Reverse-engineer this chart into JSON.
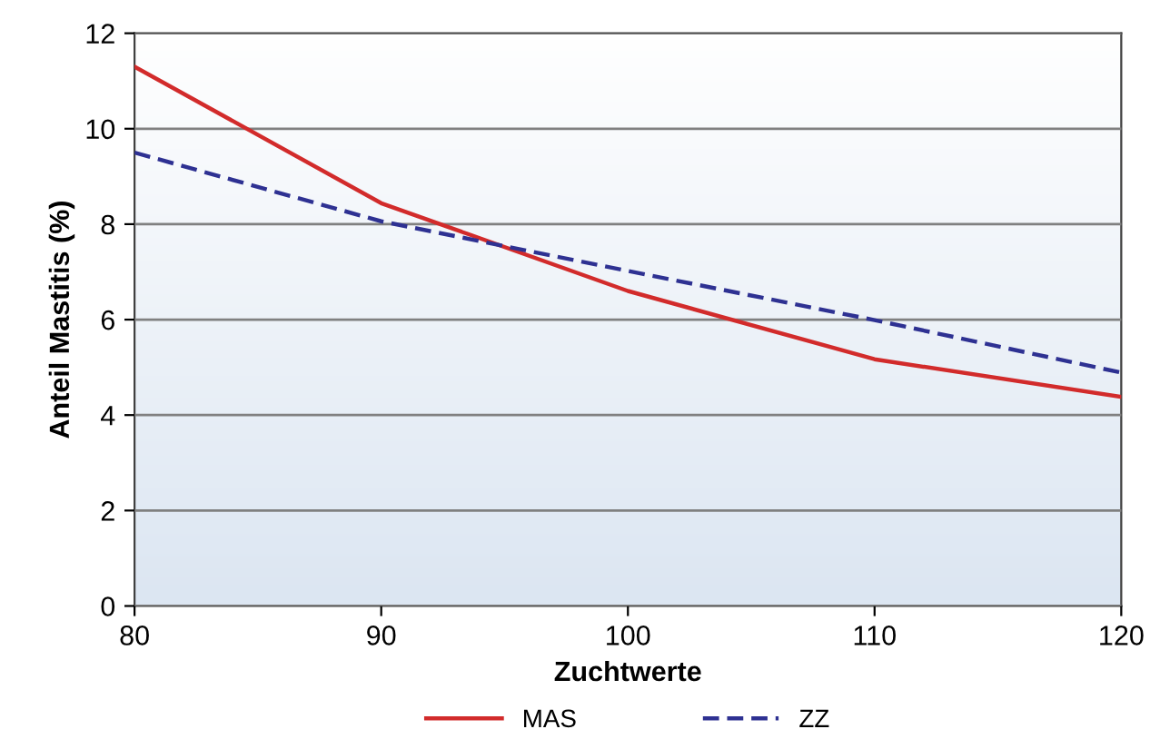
{
  "chart_data": {
    "type": "line",
    "xlabel": "Zuchtwerte",
    "ylabel": "Anteil Mastitis (%)",
    "x": [
      80,
      90,
      100,
      110,
      120
    ],
    "series": [
      {
        "name": "MAS",
        "color": "#d22b2b",
        "line_style": "solid",
        "values": [
          11.3,
          8.44,
          6.6,
          5.17,
          4.38
        ]
      },
      {
        "name": "ZZ",
        "color": "#2e3192",
        "line_style": "dashed",
        "values": [
          9.5,
          8.06,
          7.02,
          5.99,
          4.89
        ]
      }
    ],
    "xlim": [
      80,
      120
    ],
    "xticks": [
      80,
      90,
      100,
      110,
      120
    ],
    "ylim": [
      0,
      12
    ],
    "yticks": [
      0,
      2,
      4,
      6,
      8,
      10,
      12
    ],
    "grid": "y",
    "legend": "bottom",
    "marker": "none"
  }
}
